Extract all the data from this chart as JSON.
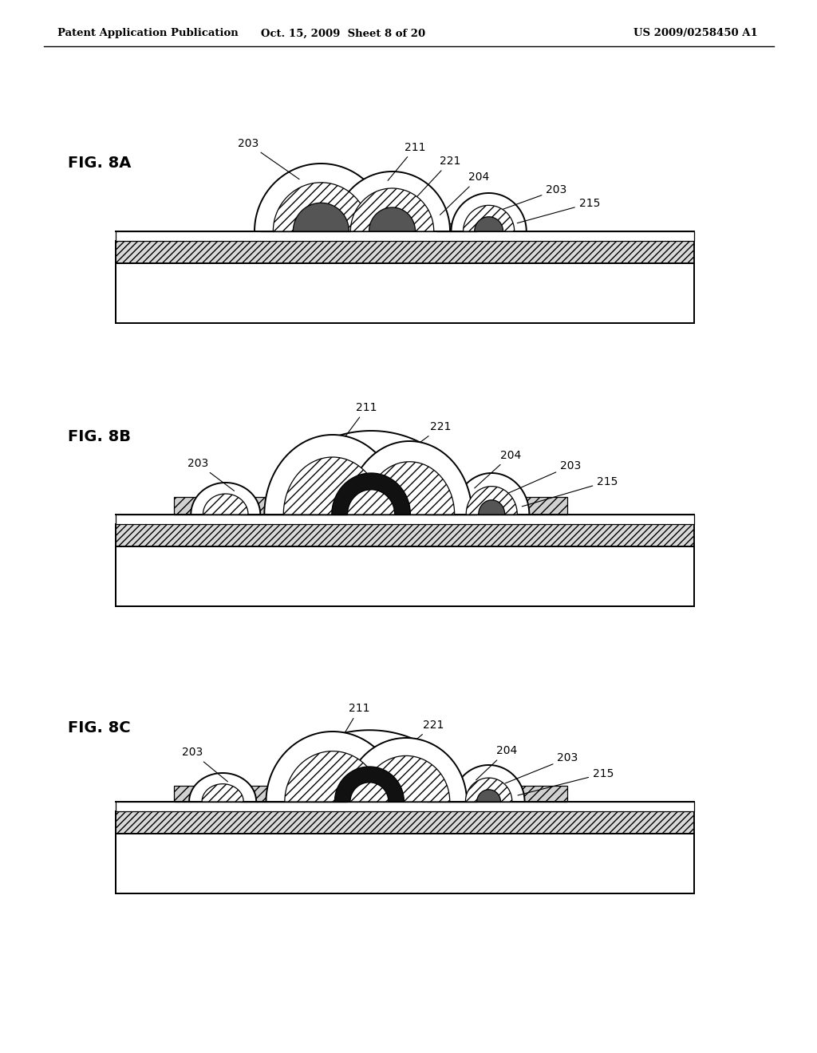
{
  "header_left": "Patent Application Publication",
  "header_center": "Oct. 15, 2009  Sheet 8 of 20",
  "header_right": "US 2009/0258450 A1",
  "bg": "#ffffff",
  "lc": "#000000",
  "panels": [
    {
      "label": "FIG. 8A",
      "variant": "A"
    },
    {
      "label": "FIG. 8B",
      "variant": "B"
    },
    {
      "label": "FIG. 8C",
      "variant": "C"
    }
  ]
}
